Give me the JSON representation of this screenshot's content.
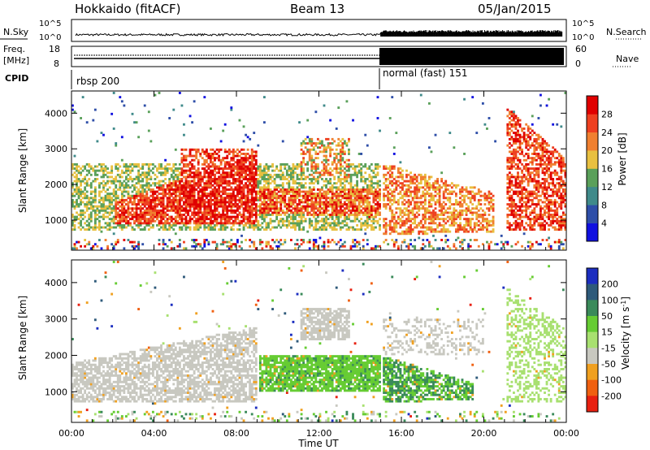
{
  "header": {
    "site": "Hokkaido (fitACF)",
    "beam": "Beam 13",
    "date": "05/Jan/2015"
  },
  "top_panels": {
    "nsky_label": "N.Sky",
    "nsky_ticks": [
      "10^5",
      "10^0"
    ],
    "nsearch_label": "N.Search",
    "freq_label_1": "Freq.",
    "freq_label_2": "[MHz]",
    "freq_ticks": [
      "18",
      "8"
    ],
    "nave_ticks": [
      "60",
      "0"
    ],
    "nave_label": "Nave",
    "cpid_label": "CPID",
    "cpid_segments": [
      {
        "name": "rbsp",
        "id": "200",
        "start_hour": 0,
        "end_hour": 15
      },
      {
        "name": "normal (fast)",
        "id": "151",
        "start_hour": 15,
        "end_hour": 24
      }
    ]
  },
  "x_axis": {
    "label": "Time UT",
    "ticks": [
      "00:00",
      "04:00",
      "08:00",
      "12:00",
      "16:00",
      "20:00",
      "00:00"
    ],
    "range_hours": [
      0,
      24
    ]
  },
  "chart_data": [
    {
      "type": "heatmap",
      "name": "Power",
      "ylabel": "Slant Range [km]",
      "yticks": [
        1000,
        2000,
        3000,
        4000
      ],
      "ylim": [
        180,
        4600
      ],
      "xlim_hours": [
        0,
        24
      ],
      "colorbar": {
        "label": "Power [dB]",
        "ticks": [
          "4",
          "8",
          "12",
          "16",
          "20",
          "24",
          "28"
        ],
        "colors": [
          "#1010e0",
          "#2e4ea8",
          "#3f8a8a",
          "#5aa05a",
          "#e8c040",
          "#f08030",
          "#ee4020",
          "#e00000"
        ]
      },
      "scatter_regions": [
        {
          "hours": [
            0,
            15
          ],
          "range_km": [
            700,
            2600
          ]
        },
        {
          "hours": [
            5.2,
            9
          ],
          "range_km": [
            1000,
            3000
          ]
        },
        {
          "hours": [
            11,
            13.5
          ],
          "range_km": [
            2200,
            3300
          ]
        },
        {
          "hours": [
            15,
            20.5
          ],
          "range_km": [
            600,
            2600
          ]
        },
        {
          "hours": [
            21,
            24
          ],
          "range_km": [
            700,
            4200
          ]
        }
      ]
    },
    {
      "type": "heatmap",
      "name": "Velocity",
      "ylabel": "Slant Range [km]",
      "yticks": [
        1000,
        2000,
        3000,
        4000
      ],
      "ylim": [
        180,
        4600
      ],
      "xlim_hours": [
        0,
        24
      ],
      "colorbar": {
        "label": "Velocity [m s^-1]",
        "ticks": [
          "200",
          "100",
          "50",
          "15",
          "-15",
          "-50",
          "-100",
          "-200"
        ],
        "colors": [
          "#1c2ec0",
          "#2e5a7a",
          "#3a8a5a",
          "#66cc33",
          "#a8e070",
          "#c8c8c0",
          "#f0a020",
          "#f06010",
          "#e82010"
        ]
      },
      "scatter_regions": [
        {
          "hours": [
            0,
            9
          ],
          "range_km": [
            700,
            2800
          ],
          "class": "-15..15"
        },
        {
          "hours": [
            9,
            15
          ],
          "range_km": [
            1000,
            2000
          ],
          "class": "15..50"
        },
        {
          "hours": [
            15,
            19.5
          ],
          "range_km": [
            700,
            2000
          ],
          "class": "50..100"
        },
        {
          "hours": [
            21,
            24
          ],
          "range_km": [
            700,
            3900
          ],
          "class": "15..50"
        }
      ]
    }
  ]
}
